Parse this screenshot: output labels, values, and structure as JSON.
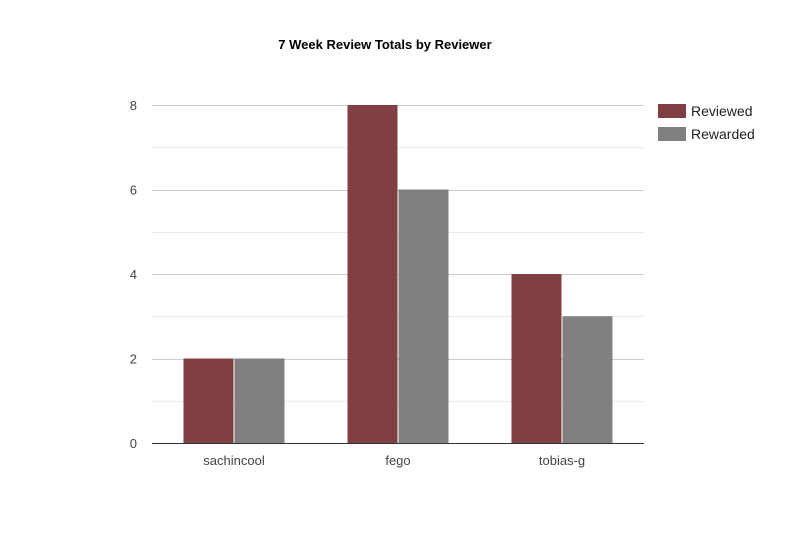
{
  "chart_data": {
    "type": "bar",
    "title": "7 Week Review Totals by Reviewer",
    "categories": [
      "sachincool",
      "fego",
      "tobias-g"
    ],
    "series": [
      {
        "name": "Reviewed",
        "values": [
          2,
          8,
          4
        ],
        "color": "#7f3f43"
      },
      {
        "name": "Rewarded",
        "values": [
          2,
          6,
          3
        ],
        "color": "#808080"
      }
    ],
    "xlabel": "",
    "ylabel": "",
    "ylim": [
      0,
      8
    ],
    "yticks": [
      0,
      2,
      4,
      6,
      8
    ],
    "grid": true,
    "legend_position": "right"
  }
}
